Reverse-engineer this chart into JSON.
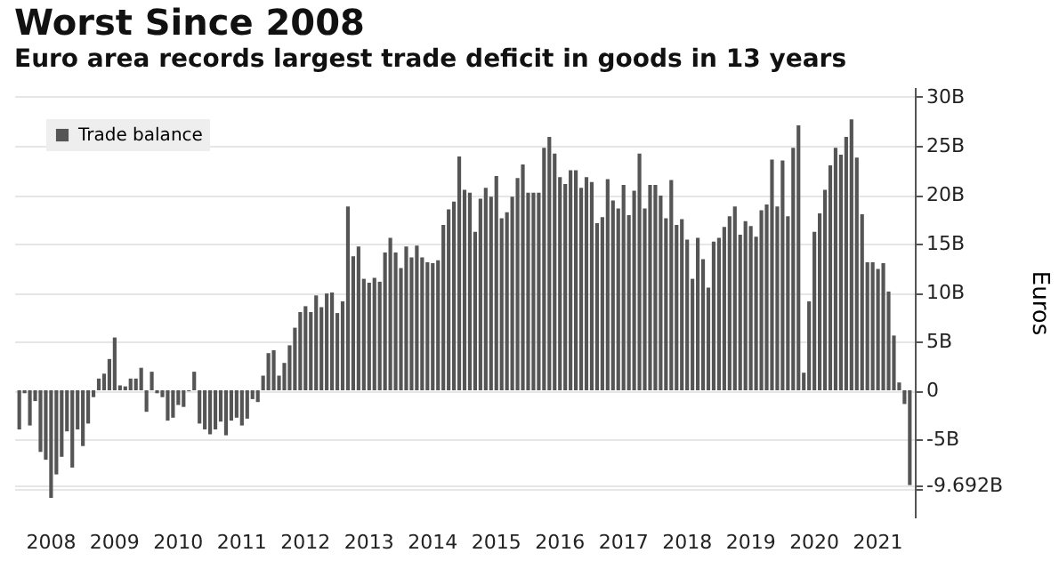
{
  "chart_data": {
    "type": "bar",
    "title": "Worst Since 2008",
    "subtitle": "Euro area records largest trade deficit in goods in 13 years",
    "ylabel": "Euros",
    "categories": [
      null,
      null,
      null,
      null,
      null,
      null,
      "2008",
      null,
      null,
      null,
      null,
      null,
      null,
      null,
      null,
      null,
      null,
      null,
      "2009",
      null,
      null,
      null,
      null,
      null,
      null,
      null,
      null,
      null,
      null,
      null,
      "2010",
      null,
      null,
      null,
      null,
      null,
      null,
      null,
      null,
      null,
      null,
      null,
      "2011",
      null,
      null,
      null,
      null,
      null,
      null,
      null,
      null,
      null,
      null,
      null,
      "2012",
      null,
      null,
      null,
      null,
      null,
      null,
      null,
      null,
      null,
      null,
      null,
      "2013",
      null,
      null,
      null,
      null,
      null,
      null,
      null,
      null,
      null,
      null,
      null,
      "2014",
      null,
      null,
      null,
      null,
      null,
      null,
      null,
      null,
      null,
      null,
      null,
      "2015",
      null,
      null,
      null,
      null,
      null,
      null,
      null,
      null,
      null,
      null,
      null,
      "2016",
      null,
      null,
      null,
      null,
      null,
      null,
      null,
      null,
      null,
      null,
      null,
      "2017",
      null,
      null,
      null,
      null,
      null,
      null,
      null,
      null,
      null,
      null,
      null,
      "2018",
      null,
      null,
      null,
      null,
      null,
      null,
      null,
      null,
      null,
      null,
      null,
      "2019",
      null,
      null,
      null,
      null,
      null,
      null,
      null,
      null,
      null,
      null,
      null,
      "2020",
      null,
      null,
      null,
      null,
      null,
      null,
      null,
      null,
      null,
      null,
      null,
      "2021",
      null,
      null,
      null,
      null,
      null,
      null
    ],
    "series": [
      {
        "name": "Trade balance",
        "color": "#555555",
        "values": [
          -4.0,
          -0.3,
          -3.6,
          -1.1,
          -6.3,
          -7.1,
          -11.0,
          -8.6,
          -6.8,
          -4.2,
          -7.9,
          -4.0,
          -5.7,
          -3.4,
          -0.7,
          1.2,
          1.7,
          3.2,
          5.4,
          0.5,
          0.4,
          1.2,
          1.2,
          2.3,
          -2.2,
          1.9,
          -0.3,
          -0.7,
          -3.1,
          -2.8,
          -1.5,
          -1.7,
          -0.1,
          1.9,
          -3.4,
          -4.0,
          -4.5,
          -4.0,
          -3.2,
          -4.6,
          -3.1,
          -2.8,
          -3.6,
          -2.9,
          -0.9,
          -1.2,
          1.5,
          3.8,
          4.1,
          1.5,
          2.8,
          4.6,
          6.4,
          8.0,
          8.6,
          8.0,
          9.7,
          8.5,
          9.9,
          10.0,
          7.9,
          9.1,
          18.8,
          13.7,
          14.7,
          11.4,
          11.0,
          11.5,
          11.1,
          14.1,
          15.6,
          14.1,
          12.5,
          14.7,
          13.6,
          14.8,
          13.6,
          13.1,
          13.0,
          13.3,
          16.9,
          18.5,
          19.3,
          23.9,
          20.5,
          20.2,
          16.2,
          19.6,
          20.7,
          19.8,
          21.9,
          17.6,
          18.2,
          19.8,
          21.7,
          23.1,
          20.2,
          20.2,
          20.2,
          24.8,
          25.9,
          24.2,
          21.8,
          21.1,
          22.5,
          22.5,
          20.7,
          21.8,
          21.3,
          17.1,
          17.7,
          21.6,
          19.4,
          18.6,
          21.0,
          17.9,
          20.4,
          24.2,
          18.6,
          21.0,
          21.0,
          19.9,
          17.6,
          21.5,
          16.9,
          17.5,
          15.4,
          11.4,
          15.6,
          13.4,
          10.5,
          15.2,
          15.6,
          16.7,
          17.8,
          18.8,
          15.9,
          17.3,
          16.8,
          15.7,
          18.4,
          19.0,
          23.6,
          18.8,
          23.5,
          17.8,
          24.8,
          27.1,
          1.8,
          9.1,
          16.2,
          18.1,
          20.5,
          23.0,
          24.8,
          24.1,
          25.9,
          27.7,
          23.8,
          18.0,
          13.1,
          13.1,
          12.4,
          13.0,
          10.1,
          5.6,
          0.8,
          -1.4,
          -9.692
        ]
      }
    ],
    "ylim": [
      -13,
      31
    ],
    "yticks": [
      {
        "value": -10,
        "label": null
      },
      {
        "value": -9.692,
        "label": "-9.692B"
      },
      {
        "value": -5,
        "label": "-5B"
      },
      {
        "value": 0,
        "label": "0"
      },
      {
        "value": 5,
        "label": "5B"
      },
      {
        "value": 10,
        "label": "10B"
      },
      {
        "value": 15,
        "label": "15B"
      },
      {
        "value": 20,
        "label": "20B"
      },
      {
        "value": 25,
        "label": "25B"
      },
      {
        "value": 30,
        "label": "30B"
      }
    ],
    "grid": "y",
    "legend": "top left"
  }
}
